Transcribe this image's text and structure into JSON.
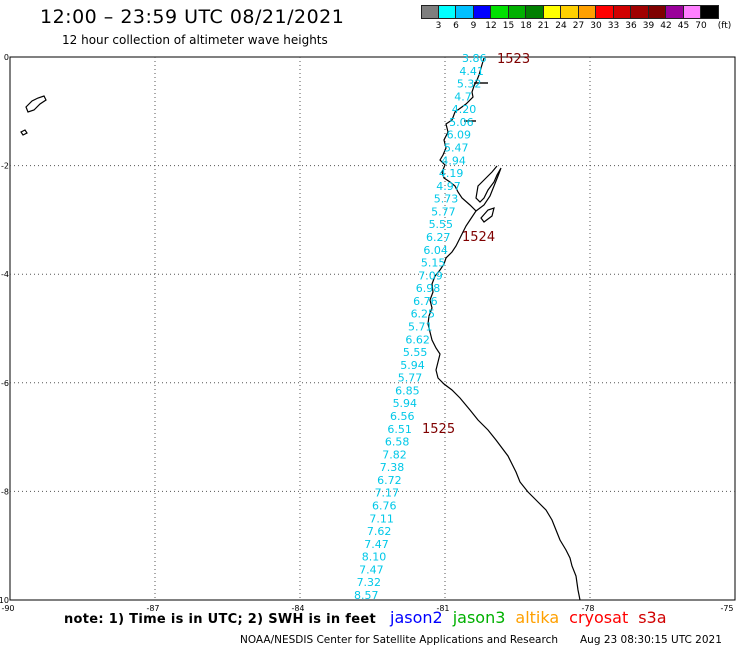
{
  "header": {
    "title": "12:00 – 23:59 UTC 08/21/2021",
    "subtitle": "12 hour collection of altimeter wave heights"
  },
  "color_scale": {
    "colors": [
      "#7f7f7f",
      "#00ffff",
      "#00c0ff",
      "#0000ff",
      "#00e000",
      "#00b000",
      "#007f00",
      "#ffff00",
      "#ffd000",
      "#ffa000",
      "#ff0000",
      "#d00000",
      "#a00000",
      "#7f0000",
      "#9a009a",
      "#ff80ff",
      "#000000"
    ],
    "labels": [
      "3",
      "6",
      "9",
      "12",
      "15",
      "18",
      "21",
      "24",
      "27",
      "30",
      "33",
      "36",
      "39",
      "42",
      "45",
      "70",
      "(ft)"
    ]
  },
  "axes": {
    "x_labels": [
      "-90",
      "-87",
      "-84",
      "-81",
      "-78",
      "-75"
    ],
    "y_labels": [
      "0",
      "-2",
      "-4",
      "-6",
      "-8",
      "-10"
    ]
  },
  "passes": [
    {
      "label": "1523",
      "color": "#7f0000"
    },
    {
      "label": "1524",
      "color": "#7f0000"
    },
    {
      "label": "1525",
      "color": "#7f0000"
    }
  ],
  "wave_heights": [
    "3.86",
    "4.41",
    "5.32",
    "4.7",
    "4.20",
    "5.06",
    "6.09",
    "5.47",
    "4.94",
    "4.19",
    "4.97",
    "5.73",
    "5.77",
    "5.55",
    "6.27",
    "6.04",
    "5.15",
    "7.09",
    "6.98",
    "6.76",
    "6.25",
    "5.71",
    "6.62",
    "5.55",
    "5.94",
    "5.77",
    "6.85",
    "5.94",
    "6.56",
    "6.51",
    "6.58",
    "7.82",
    "7.38",
    "6.72",
    "7.17",
    "6.76",
    "7.11",
    "7.62",
    "7.47",
    "8.10",
    "7.47",
    "7.32",
    "8.57"
  ],
  "wave_color": "#00c8e8",
  "note": "note: 1) Time is in UTC; 2) SWH is in feet",
  "satellites": [
    {
      "name": "jason2",
      "color": "#0000ff"
    },
    {
      "name": "jason3",
      "color": "#00b000"
    },
    {
      "name": "altika",
      "color": "#ffa000"
    },
    {
      "name": "cryosat",
      "color": "#ff0000"
    },
    {
      "name": "s3a",
      "color": "#d00000"
    }
  ],
  "footer": {
    "credit": "NOAA/NESDIS Center for Satellite Applications and Research",
    "timestamp": "Aug 23 08:30:15 UTC 2021"
  }
}
